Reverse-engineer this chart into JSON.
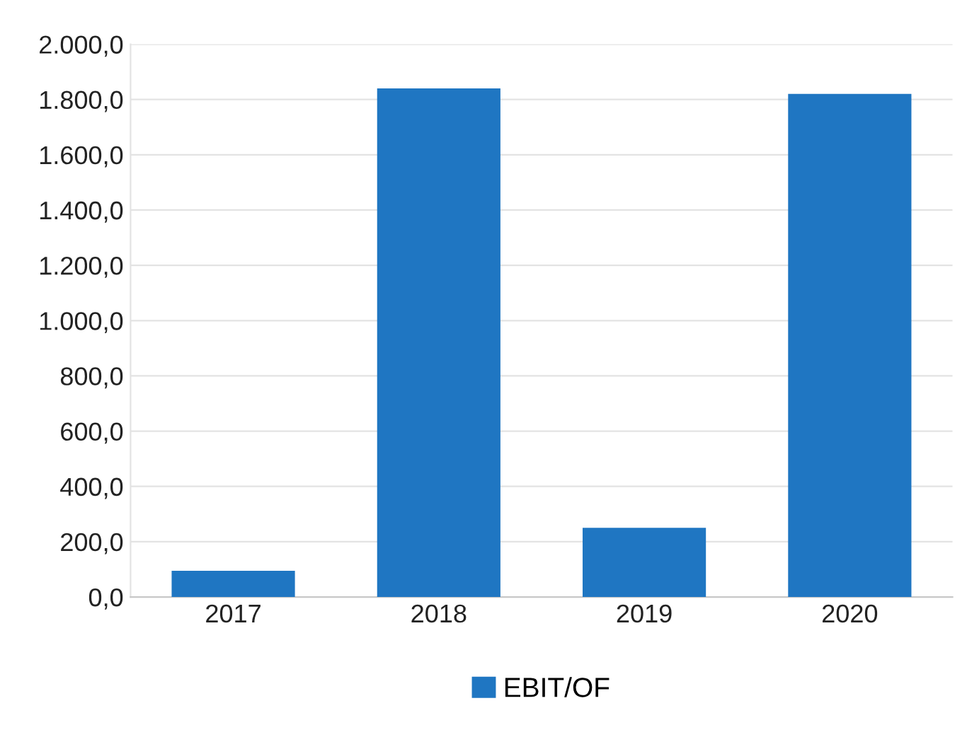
{
  "chart_data": {
    "type": "bar",
    "categories": [
      "2017",
      "2018",
      "2019",
      "2020"
    ],
    "series": [
      {
        "name": "EBIT/OF",
        "color": "#1f76c2",
        "values": [
          95,
          1840,
          250,
          1820
        ]
      }
    ],
    "ylim": [
      0,
      2000
    ],
    "yticks": [
      {
        "value": 0,
        "label": "0,0"
      },
      {
        "value": 200,
        "label": "200,0"
      },
      {
        "value": 400,
        "label": "400,0"
      },
      {
        "value": 600,
        "label": "600,0"
      },
      {
        "value": 800,
        "label": "800,0"
      },
      {
        "value": 1000,
        "label": "1.000,0"
      },
      {
        "value": 1200,
        "label": "1.200,0"
      },
      {
        "value": 1400,
        "label": "1.400,0"
      },
      {
        "value": 1600,
        "label": "1.600,0"
      },
      {
        "value": 1800,
        "label": "1.800,0"
      },
      {
        "value": 2000,
        "label": "2.000,0"
      }
    ],
    "grid": "y",
    "legend": "bottom"
  }
}
